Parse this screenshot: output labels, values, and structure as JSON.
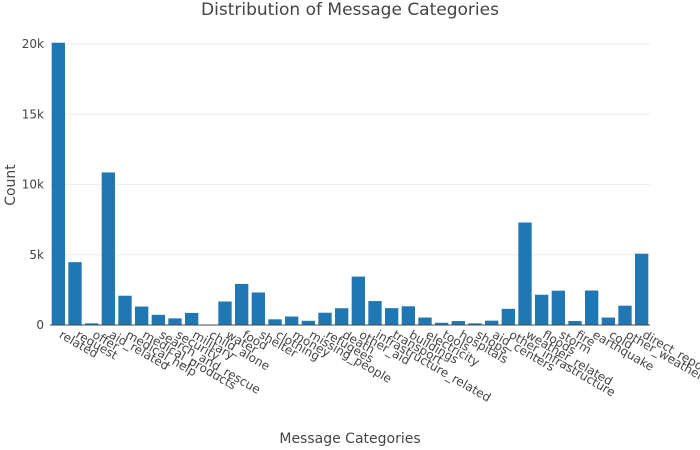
{
  "chart_data": {
    "type": "bar",
    "title": "Distribution of Message Categories",
    "xlabel": "Message Categories",
    "ylabel": "Count",
    "ylim": [
      0,
      21000
    ],
    "yticks": [
      0,
      5000,
      10000,
      15000,
      20000
    ],
    "ytick_labels": [
      "0",
      "5k",
      "10k",
      "15k",
      "20k"
    ],
    "grid": true,
    "bar_color": "#1f77b4",
    "categories": [
      "related",
      "request",
      "offer",
      "aid_related",
      "medical_help",
      "medical_products",
      "search_and_rescue",
      "security",
      "military",
      "child_alone",
      "water",
      "food",
      "shelter",
      "clothing",
      "money",
      "missing_people",
      "refugees",
      "death",
      "other_aid",
      "infrastructure_related",
      "transport",
      "buildings",
      "electricity",
      "tools",
      "hospitals",
      "shops",
      "aid_centers",
      "other_infrastructure",
      "weather_related",
      "floods",
      "storm",
      "fire",
      "earthquake",
      "cold",
      "other_weather",
      "direct_report"
    ],
    "values": [
      20094,
      4474,
      118,
      10860,
      2084,
      1313,
      724,
      471,
      860,
      0,
      1672,
      2923,
      2314,
      405,
      604,
      298,
      875,
      1194,
      3446,
      1705,
      1201,
      1333,
      532,
      159,
      283,
      120,
      309,
      1151,
      7297,
      2155,
      2443,
      282,
      2455,
      530,
      1376,
      5075
    ]
  }
}
